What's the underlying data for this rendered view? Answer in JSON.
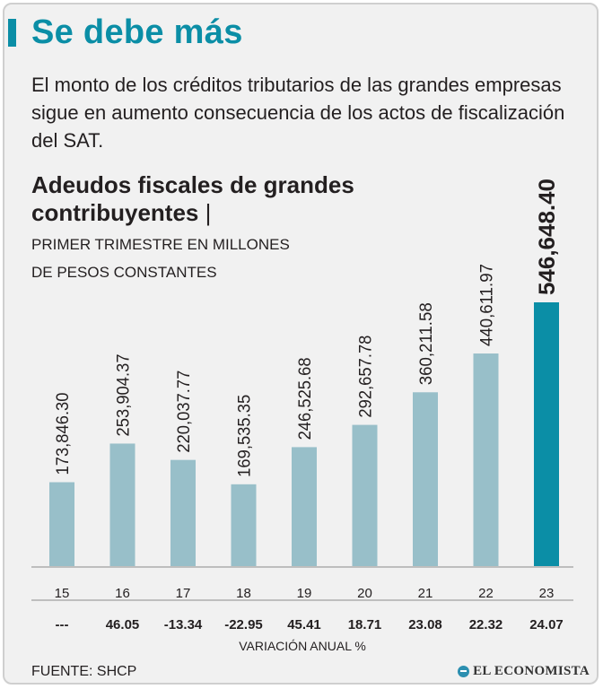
{
  "header": {
    "title": "Se debe más",
    "intro": "El monto de los créditos tributarios de las grandes empresas sigue en aumento consecuencia de los actos de fiscalización del SAT."
  },
  "chart_data": {
    "type": "bar",
    "title": "Adeudos fiscales de grandes contribuyentes",
    "title_separator": "|",
    "subtitle_line1": "PRIMER TRIMESTRE EN MILLONES",
    "subtitle_line2": "DE PESOS CONSTANTES",
    "categories": [
      "15",
      "16",
      "17",
      "18",
      "19",
      "20",
      "21",
      "22",
      "23"
    ],
    "values": [
      173846.3,
      253904.37,
      220037.77,
      169535.35,
      246525.68,
      292657.78,
      360211.58,
      440611.97,
      546648.4
    ],
    "value_labels": [
      "173,846.30",
      "253,904.37",
      "220,037.77",
      "169,535.35",
      "246,525.68",
      "292,657.78",
      "360,211.58",
      "440,611.97",
      "546,648.40"
    ],
    "annual_change_labels": [
      "---",
      "46.05",
      "-13.34",
      "-22.95",
      "45.41",
      "18.71",
      "23.08",
      "22.32",
      "24.07"
    ],
    "annual_change_title": "VARIACIÓN ANUAL %",
    "ylim": [
      0,
      546648.4
    ],
    "highlight_index": 8,
    "colors": {
      "bar": "#98bfc9",
      "highlight": "#0b8ea6"
    }
  },
  "footer": {
    "source": "FUENTE: SHCP",
    "brand": "EL ECONOMISTA",
    "brand_icon": "globe-icon"
  }
}
